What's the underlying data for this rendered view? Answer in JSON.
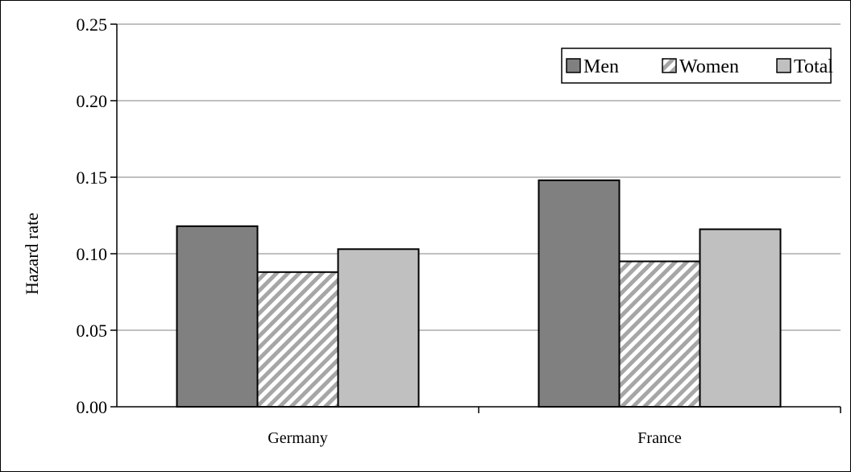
{
  "chart_data": {
    "type": "bar",
    "categories": [
      "Germany",
      "France"
    ],
    "series": [
      {
        "name": "Men",
        "values": [
          0.118,
          0.148
        ],
        "color": "#808080",
        "pattern": "solid"
      },
      {
        "name": "Women",
        "values": [
          0.088,
          0.095
        ],
        "color": "#a6a6a6",
        "pattern": "hatch"
      },
      {
        "name": "Total",
        "values": [
          0.103,
          0.116
        ],
        "color": "#c0c0c0",
        "pattern": "solid"
      }
    ],
    "ylabel": "Hazard rate",
    "ylim": [
      0,
      0.25
    ],
    "yticks": [
      "0.00",
      "0.05",
      "0.10",
      "0.15",
      "0.20",
      "0.25"
    ],
    "grid": true,
    "legend_position": "top-right"
  }
}
